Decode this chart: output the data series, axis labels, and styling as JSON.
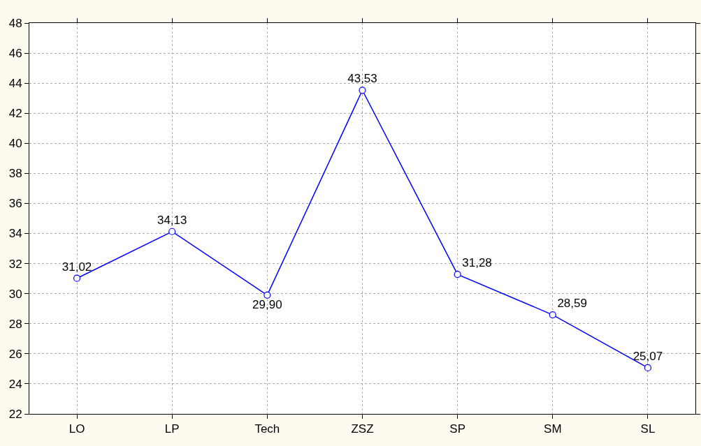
{
  "chart_data": {
    "type": "line",
    "categories": [
      "LO",
      "LP",
      "Tech",
      "ZSZ",
      "SP",
      "SM",
      "SL"
    ],
    "series": [
      {
        "color": "#0000ff",
        "values": [
          31.02,
          34.13,
          29.9,
          43.53,
          31.28,
          28.59,
          25.07
        ],
        "value_labels": [
          "31,02",
          "34,13",
          "29,90",
          "43,53",
          "31,28",
          "28,59",
          "25,07"
        ]
      }
    ],
    "ylim": [
      22,
      48
    ],
    "yticks": [
      22,
      24,
      26,
      28,
      30,
      32,
      34,
      36,
      38,
      40,
      42,
      44,
      46,
      48
    ],
    "grid": true,
    "marker": "circle",
    "line_style": "solid"
  }
}
